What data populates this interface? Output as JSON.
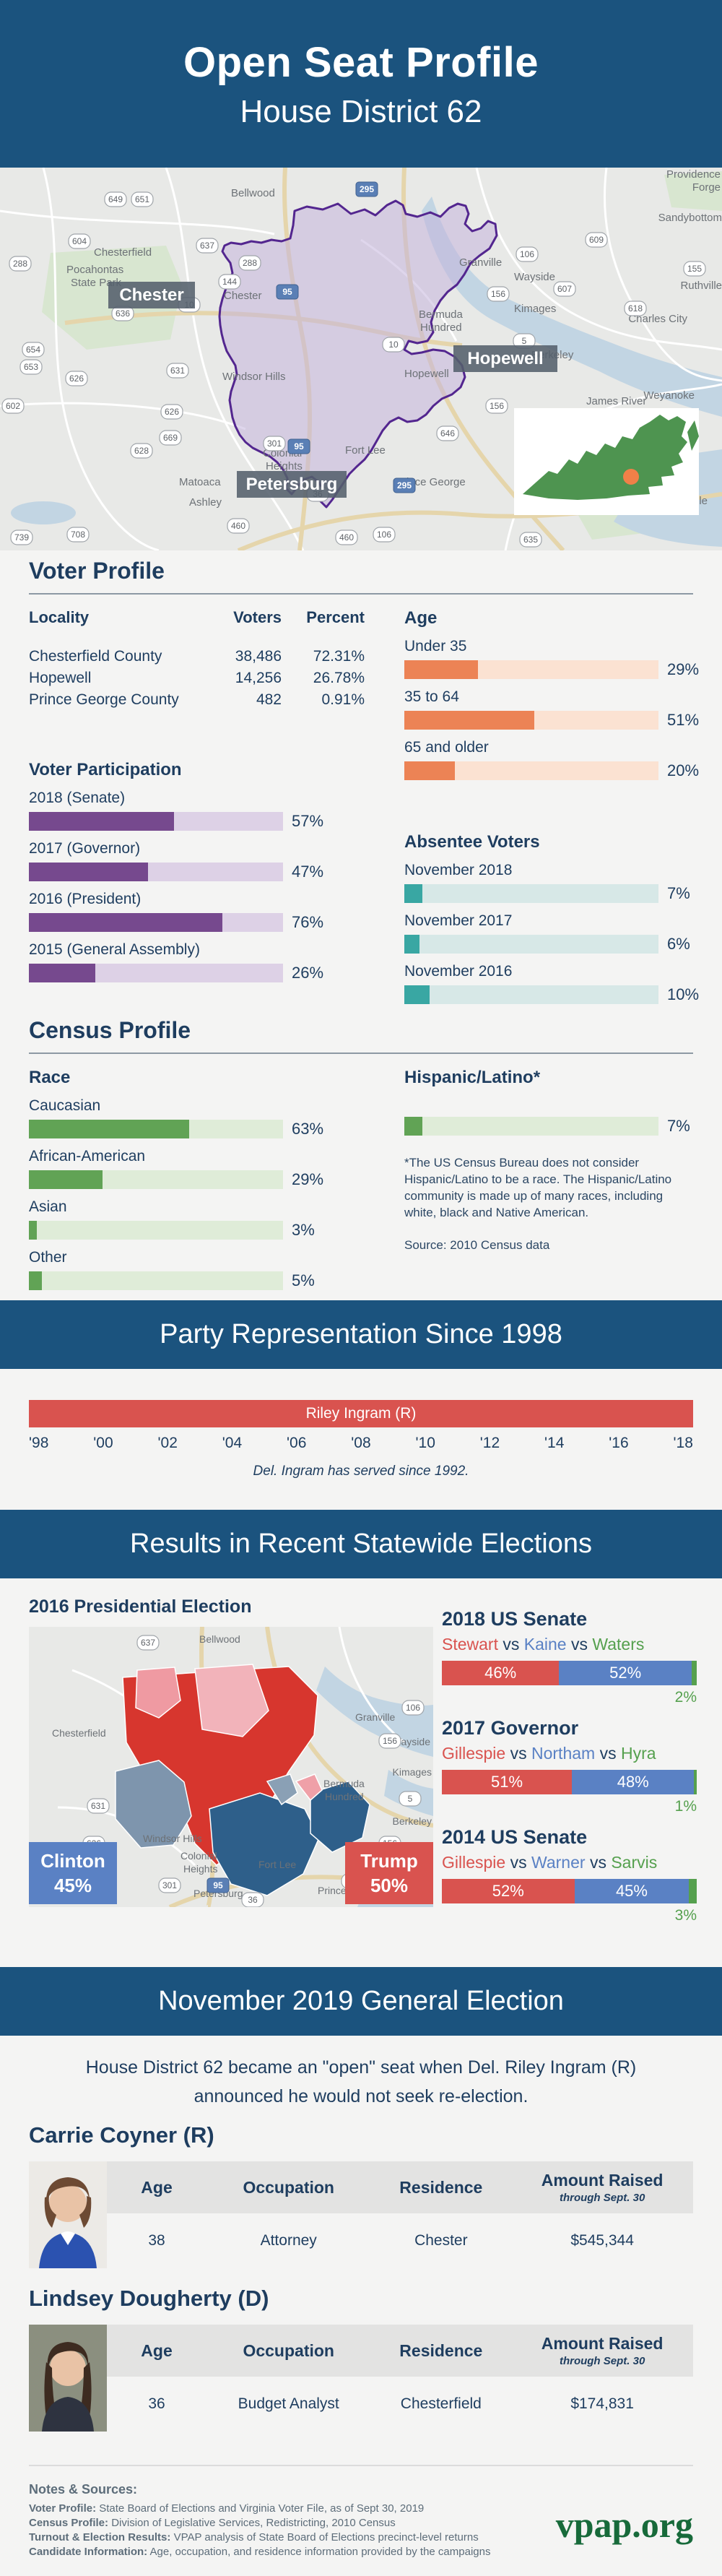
{
  "header": {
    "title": "Open Seat Profile",
    "subtitle": "House District 62"
  },
  "district_map": {
    "big_labels": [
      "Chester",
      "Hopewell",
      "Petersburg"
    ],
    "towns": [
      "Bellwood",
      "Chesterfield",
      "Pocahontas",
      "State Park",
      "Chester",
      "Granville",
      "Wayside",
      "Kimages",
      "Charles City",
      "Bermuda",
      "Hundred",
      "Berkeley",
      "Windsor Hills",
      "Hopewell",
      "Weyanoke",
      "James River",
      "Matoaca",
      "Ashley",
      "Colonial",
      "Heights",
      "Fort Lee",
      "Prince George",
      "Burrowsville",
      "Sandybottom",
      "Providence",
      "Forge",
      "Ruthville"
    ],
    "shields": [
      "649",
      "651",
      "604",
      "288",
      "637",
      "295",
      "144",
      "95",
      "10",
      "288",
      "636",
      "654",
      "653",
      "626",
      "631",
      "602",
      "626",
      "669",
      "628",
      "301",
      "95",
      "36",
      "460",
      "460",
      "106",
      "106",
      "156",
      "607",
      "618",
      "609",
      "155",
      "5",
      "646",
      "156",
      "739",
      "708",
      "635",
      "295",
      "10"
    ],
    "inset": {
      "state": "Virginia",
      "marker_color": "#f08048"
    }
  },
  "voter_profile": {
    "title": "Voter Profile",
    "locality_table": {
      "headers": [
        "Locality",
        "Voters",
        "Percent"
      ],
      "rows": [
        {
          "locality": "Chesterfield County",
          "voters": "38,486",
          "percent": "72.31%"
        },
        {
          "locality": "Hopewell",
          "voters": "14,256",
          "percent": "26.78%"
        },
        {
          "locality": "Prince George County",
          "voters": "482",
          "percent": "0.91%"
        }
      ]
    },
    "participation": {
      "title": "Voter Participation",
      "bars": [
        {
          "label": "2018 (Senate)",
          "value": 57,
          "display": "57%"
        },
        {
          "label": "2017 (Governor)",
          "value": 47,
          "display": "47%"
        },
        {
          "label": "2016 (President)",
          "value": 76,
          "display": "76%"
        },
        {
          "label": "2015 (General Assembly)",
          "value": 26,
          "display": "26%"
        }
      ]
    },
    "age": {
      "title": "Age",
      "bars": [
        {
          "label": "Under 35",
          "value": 29,
          "display": "29%"
        },
        {
          "label": "35 to 64",
          "value": 51,
          "display": "51%"
        },
        {
          "label": "65 and older",
          "value": 20,
          "display": "20%"
        }
      ]
    },
    "absentee": {
      "title": "Absentee Voters",
      "bars": [
        {
          "label": "November 2018",
          "value": 7,
          "display": "7%"
        },
        {
          "label": "November 2017",
          "value": 6,
          "display": "6%"
        },
        {
          "label": "November 2016",
          "value": 10,
          "display": "10%"
        }
      ]
    }
  },
  "census_profile": {
    "title": "Census Profile",
    "race": {
      "title": "Race",
      "bars": [
        {
          "label": "Caucasian",
          "value": 63,
          "display": "63%"
        },
        {
          "label": "African-American",
          "value": 29,
          "display": "29%"
        },
        {
          "label": "Asian",
          "value": 3,
          "display": "3%"
        },
        {
          "label": "Other",
          "value": 5,
          "display": "5%"
        }
      ]
    },
    "hispanic": {
      "title": "Hispanic/Latino*",
      "bar": {
        "value": 7,
        "display": "7%"
      },
      "note": "*The US Census Bureau does not consider Hispanic/Latino to be a race. The Hispanic/Latino community is made up of many races, including white, black and Native American.",
      "source": "Source: 2010 Census data"
    }
  },
  "party_representation": {
    "banner": "Party Representation Since 1998",
    "incumbent": "Riley Ingram (R)",
    "years": [
      "'98",
      "'00",
      "'02",
      "'04",
      "'06",
      "'08",
      "'10",
      "'12",
      "'14",
      "'16",
      "'18"
    ],
    "caption": "Del. Ingram has served since 1992."
  },
  "statewide_results": {
    "banner": "Results in Recent Statewide Elections",
    "presidential": {
      "title": "2016 Presidential Election",
      "dem": {
        "name": "Clinton",
        "pct": "45%"
      },
      "rep": {
        "name": "Trump",
        "pct": "50%"
      }
    },
    "vs": "vs",
    "races": [
      {
        "title": "2018 US Senate",
        "r": "Stewart",
        "d": "Kaine",
        "o": "Waters",
        "r_val": 46,
        "d_val": 52,
        "o_val": 2,
        "r_disp": "46%",
        "d_disp": "52%",
        "o_disp": "2%"
      },
      {
        "title": "2017 Governor",
        "r": "Gillespie",
        "d": "Northam",
        "o": "Hyra",
        "r_val": 51,
        "d_val": 48,
        "o_val": 1,
        "r_disp": "51%",
        "d_disp": "48%",
        "o_disp": "1%"
      },
      {
        "title": "2014 US Senate",
        "r": "Gillespie",
        "d": "Warner",
        "o": "Sarvis",
        "r_val": 52,
        "d_val": 45,
        "o_val": 3,
        "r_disp": "52%",
        "d_disp": "45%",
        "o_disp": "3%"
      }
    ]
  },
  "general_election": {
    "banner": "November 2019 General Election",
    "intro_line1": "House District 62 became an \"open\" seat when Del. Riley Ingram (R)",
    "intro_line2": "announced he would not seek re-election.",
    "table_headers": {
      "age": "Age",
      "occupation": "Occupation",
      "residence": "Residence",
      "amount": "Amount Raised",
      "amount_sub": "through Sept. 30"
    },
    "candidates": [
      {
        "name": "Carrie Coyner (R)",
        "age": "38",
        "occupation": "Attorney",
        "residence": "Chester",
        "amount": "$545,344"
      },
      {
        "name": "Lindsey Dougherty (D)",
        "age": "36",
        "occupation": "Budget Analyst",
        "residence": "Chesterfield",
        "amount": "$174,831"
      }
    ]
  },
  "footer": {
    "notes_title": "Notes & Sources:",
    "notes": [
      {
        "label": "Voter Profile:",
        "text": " State Board of Elections and Virginia Voter File, as of Sept 30, 2019"
      },
      {
        "label": "Census Profile:",
        "text": " Division of Legislative Services, Redistricting, 2010 Census"
      },
      {
        "label": "Turnout & Election Results:",
        "text": " VPAP analysis of State Board of Elections precinct-level returns"
      },
      {
        "label": "Candidate Information:",
        "text": " Age, occupation, and residence information provided by the campaigns"
      }
    ],
    "logo": "vpap.org"
  },
  "colors": {
    "banner_blue": "#1b537e",
    "navy": "#1e3d5f",
    "purple": "#76498e",
    "orange": "#ec8355",
    "teal": "#39a7a3",
    "green": "#61a355",
    "republican_red": "#d9534f",
    "democrat_blue": "#5a81c4",
    "third_party_green": "#55a04e",
    "vpap_green": "#176a3a",
    "district_outline": "#53268f"
  },
  "chart_data": [
    {
      "type": "table",
      "title": "Voter Profile by Locality",
      "columns": [
        "Locality",
        "Voters",
        "Percent"
      ],
      "rows": [
        [
          "Chesterfield County",
          "38,486",
          "72.31%"
        ],
        [
          "Hopewell",
          "14,256",
          "26.78%"
        ],
        [
          "Prince George County",
          "482",
          "0.91%"
        ]
      ]
    },
    {
      "type": "bar",
      "title": "Voter Participation",
      "categories": [
        "2018 (Senate)",
        "2017 (Governor)",
        "2016 (President)",
        "2015 (General Assembly)"
      ],
      "values": [
        57,
        47,
        76,
        26
      ],
      "unit": "%",
      "xlim": [
        0,
        100
      ]
    },
    {
      "type": "bar",
      "title": "Age",
      "categories": [
        "Under 35",
        "35 to 64",
        "65 and older"
      ],
      "values": [
        29,
        51,
        20
      ],
      "unit": "%",
      "xlim": [
        0,
        100
      ]
    },
    {
      "type": "bar",
      "title": "Absentee Voters",
      "categories": [
        "November 2018",
        "November 2017",
        "November 2016"
      ],
      "values": [
        7,
        6,
        10
      ],
      "unit": "%",
      "xlim": [
        0,
        100
      ]
    },
    {
      "type": "bar",
      "title": "Race",
      "categories": [
        "Caucasian",
        "African-American",
        "Asian",
        "Other"
      ],
      "values": [
        63,
        29,
        3,
        5
      ],
      "unit": "%",
      "xlim": [
        0,
        100
      ]
    },
    {
      "type": "bar",
      "title": "Hispanic/Latino",
      "categories": [
        "Hispanic/Latino"
      ],
      "values": [
        7
      ],
      "unit": "%",
      "xlim": [
        0,
        100
      ]
    },
    {
      "type": "timeline",
      "title": "Party Representation Since 1998",
      "x": [
        "'98",
        "'00",
        "'02",
        "'04",
        "'06",
        "'08",
        "'10",
        "'12",
        "'14",
        "'16",
        "'18"
      ],
      "segments": [
        {
          "label": "Riley Ingram (R)",
          "party": "Republican",
          "span": [
            "'98",
            "'18"
          ]
        }
      ],
      "note": "Del. Ingram has served since 1992."
    },
    {
      "type": "bar",
      "title": "2016 Presidential Election",
      "categories": [
        "Clinton",
        "Trump"
      ],
      "values": [
        45,
        50
      ],
      "unit": "%"
    },
    {
      "type": "bar",
      "title": "2018 US Senate",
      "categories": [
        "Stewart",
        "Kaine",
        "Waters"
      ],
      "values": [
        46,
        52,
        2
      ],
      "unit": "%"
    },
    {
      "type": "bar",
      "title": "2017 Governor",
      "categories": [
        "Gillespie",
        "Northam",
        "Hyra"
      ],
      "values": [
        51,
        48,
        1
      ],
      "unit": "%"
    },
    {
      "type": "bar",
      "title": "2014 US Senate",
      "categories": [
        "Gillespie",
        "Warner",
        "Sarvis"
      ],
      "values": [
        52,
        45,
        3
      ],
      "unit": "%"
    }
  ]
}
